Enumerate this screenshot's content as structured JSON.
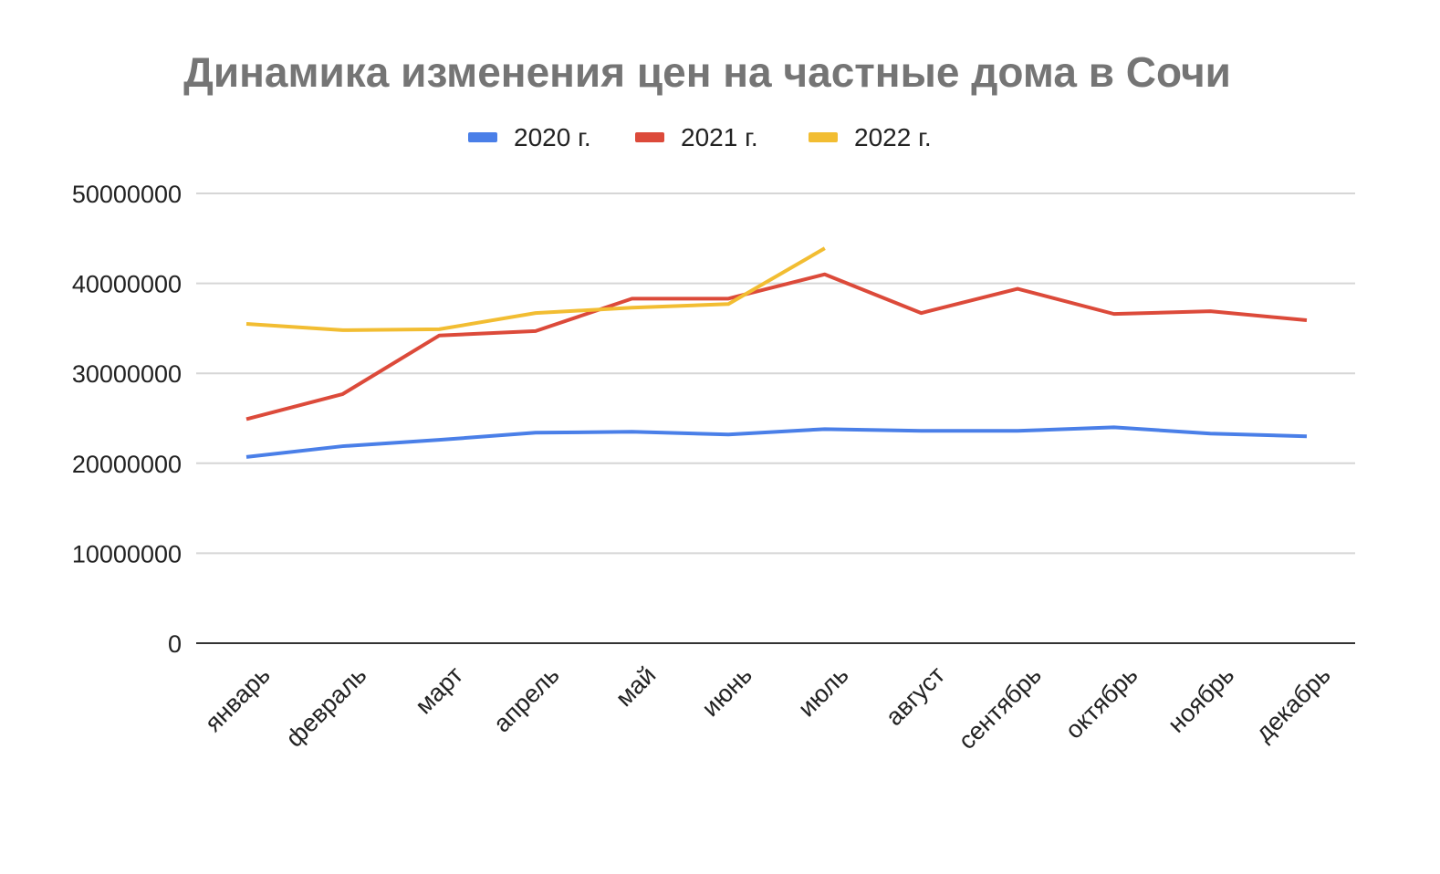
{
  "chart_data": {
    "type": "line",
    "title": "Динамика изменения цен на частные дома в Сочи",
    "xlabel": "",
    "ylabel": "",
    "ylim": [
      0,
      50000000
    ],
    "yticks": [
      "0",
      "10000000",
      "20000000",
      "30000000",
      "40000000",
      "50000000"
    ],
    "ytick_values": [
      0,
      10000000,
      20000000,
      30000000,
      40000000,
      50000000
    ],
    "grid": true,
    "legend_position": "top-center",
    "categories": [
      "январь",
      "февраль",
      "март",
      "апрель",
      "май",
      "июнь",
      "июль",
      "август",
      "сентябрь",
      "октябрь",
      "ноябрь",
      "декабрь"
    ],
    "series": [
      {
        "name": "2020 г.",
        "color": "#4a7fe8",
        "values": [
          20700000,
          21900000,
          22600000,
          23400000,
          23500000,
          23200000,
          23800000,
          23600000,
          23600000,
          24000000,
          23300000,
          23000000
        ]
      },
      {
        "name": "2021 г.",
        "color": "#dc4a3a",
        "values": [
          24900000,
          27700000,
          34200000,
          34700000,
          38300000,
          38300000,
          41000000,
          36700000,
          39400000,
          36600000,
          36900000,
          35900000
        ]
      },
      {
        "name": "2022 г.",
        "color": "#f2bd32",
        "values": [
          35500000,
          34800000,
          34900000,
          36700000,
          37300000,
          37700000,
          43900000,
          null,
          null,
          null,
          null,
          null
        ]
      }
    ]
  }
}
